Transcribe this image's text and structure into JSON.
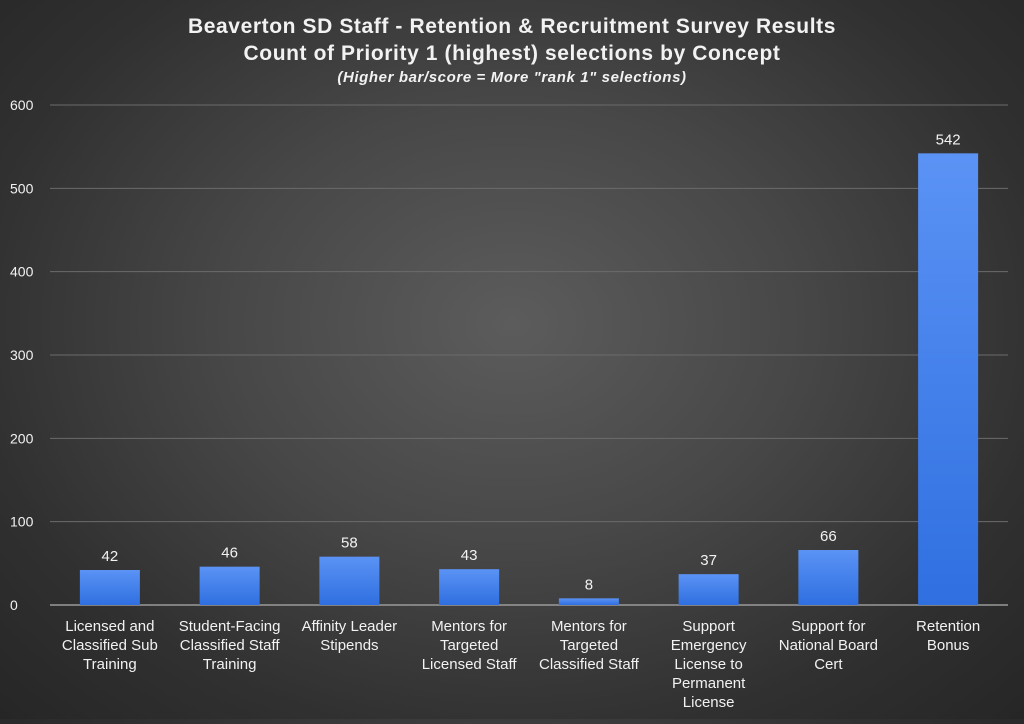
{
  "colors": {
    "bar_top": "#5b93f5",
    "bar_bottom": "#2f6fe0",
    "text": "#f2f2f2",
    "grid": "#6b6b6b",
    "axis": "#9a9a9a"
  },
  "chart_data": {
    "type": "bar",
    "title": "Beaverton SD Staff - Retention & Recruitment Survey Results",
    "subtitle": "Count of Priority 1 (highest) selections by Concept",
    "note": "(Higher bar/score = More \"rank 1\" selections)",
    "categories": [
      [
        "Licensed and",
        "Classified Sub",
        "Training"
      ],
      [
        "Student-Facing",
        "Classified Staff",
        "Training"
      ],
      [
        "Affinity Leader",
        "Stipends"
      ],
      [
        "Mentors for",
        "Targeted",
        "Licensed Staff"
      ],
      [
        "Mentors for",
        "Targeted",
        "Classified Staff"
      ],
      [
        "Support",
        "Emergency",
        "License to",
        "Permanent",
        "License"
      ],
      [
        "Support for",
        "National Board",
        "Cert"
      ],
      [
        "Retention",
        "Bonus"
      ]
    ],
    "values": [
      42,
      46,
      58,
      43,
      8,
      37,
      66,
      542
    ],
    "ylim": [
      0,
      600
    ],
    "yticks": [
      0,
      100,
      200,
      300,
      400,
      500,
      600
    ],
    "grid": true,
    "legend": "none"
  }
}
